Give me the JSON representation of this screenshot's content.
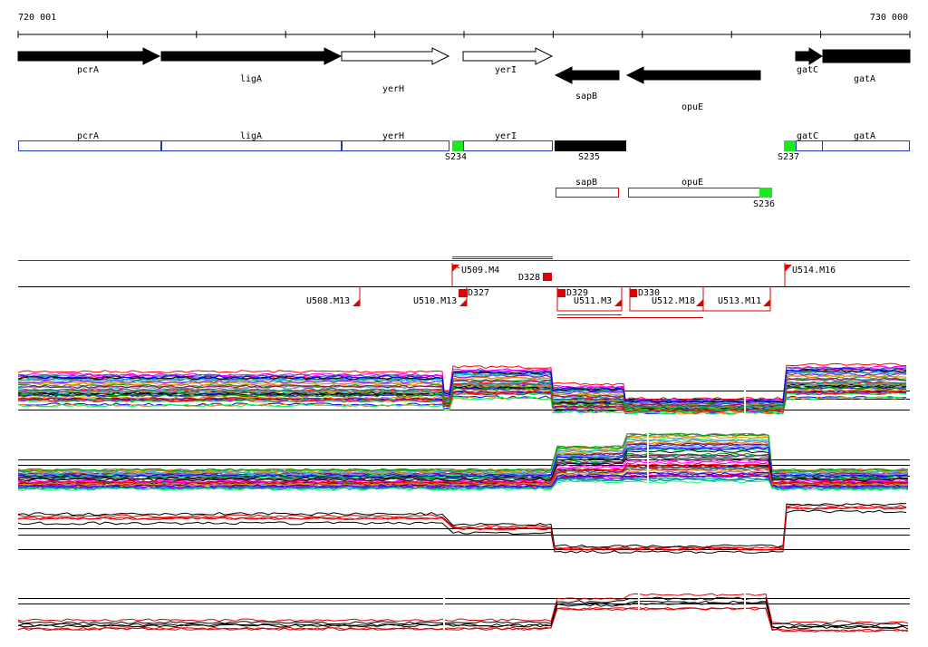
{
  "ruler": {
    "start": "720 001",
    "end": "730 000"
  },
  "gene_track": {
    "genes": [
      "pcrA",
      "ligA",
      "yerH",
      "yerI",
      "sapB",
      "opuE",
      "gatC",
      "gatA"
    ]
  },
  "annotation_track": {
    "genes": [
      "pcrA",
      "ligA",
      "yerH",
      "yerI",
      "gatC",
      "gatA"
    ],
    "segments": [
      "S234",
      "S235",
      "S237"
    ]
  },
  "reverse_track": {
    "genes": [
      "sapB",
      "opuE"
    ],
    "segments": [
      "S236"
    ]
  },
  "transcription_units": [
    "U509.M4",
    "D328",
    "U514.M16",
    "U508.M13",
    "U510.M13",
    "D327",
    "D329",
    "U511.M3",
    "D330",
    "U512.M18",
    "U513.M11"
  ]
}
